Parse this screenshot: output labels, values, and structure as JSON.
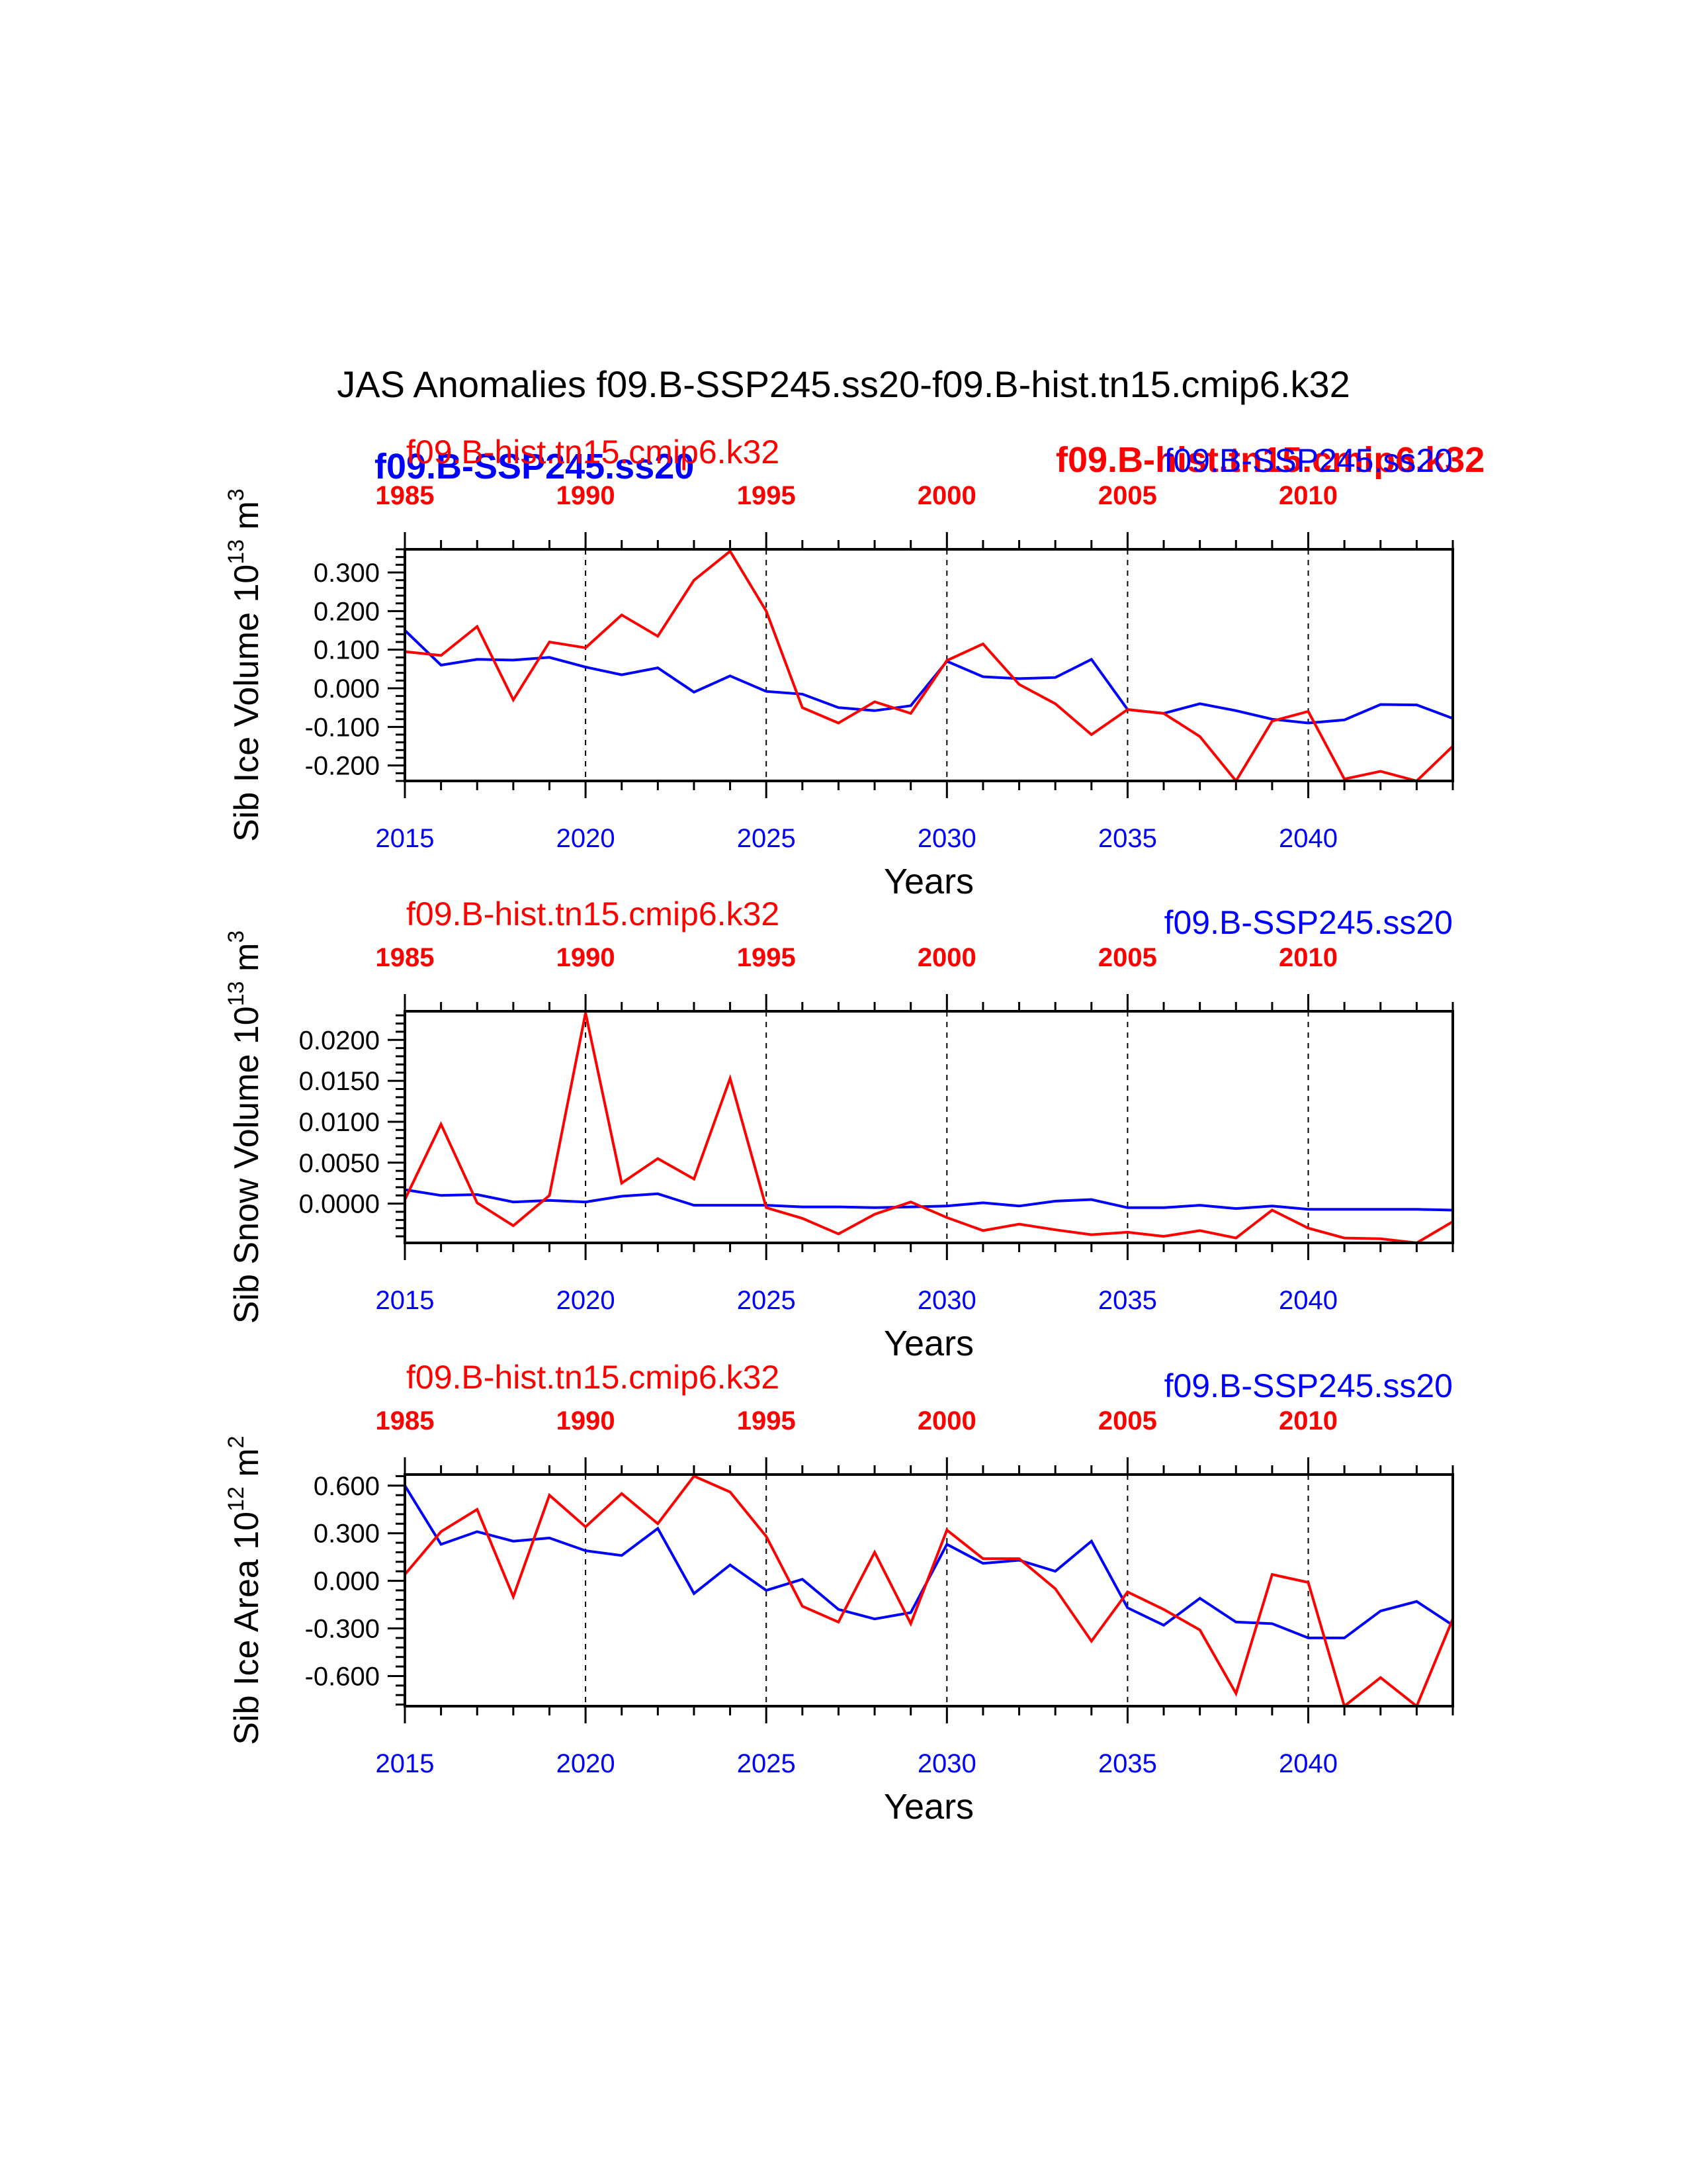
{
  "title": "JAS Anomalies f09.B-SSP245.ss20-f09.B-hist.tn15.cmip6.k32",
  "colors": {
    "ssp": "#0000ff",
    "hist": "#ff0000",
    "axis": "#000000"
  },
  "overlay_labels": {
    "ssp_bold": "f09.B-SSP245.ss20",
    "hist_bold": "f09.B-hist.tn15.cmip6.k32"
  },
  "chart_data": [
    {
      "type": "line",
      "ylabel": "Sib Ice Volume 10",
      "ylabel_exp": "13",
      "ylabel_unit": " m",
      "ylabel_unit_exp": "3",
      "xlabel": "Years",
      "ylim": [
        -0.24,
        0.36
      ],
      "yticks": [
        "0.300",
        "0.200",
        "0.100",
        "0.000",
        "-0.100",
        "-0.200"
      ],
      "ytick_values": [
        0.3,
        0.2,
        0.1,
        0.0,
        -0.1,
        -0.2
      ],
      "xlim": [
        2015,
        2044
      ],
      "top_series_label": "f09.B-hist.tn15.cmip6.k32",
      "top_right_label": "f09.B-SSP245.ss20",
      "top_axis_ticks": [
        "1985",
        "1990",
        "1995",
        "2000",
        "2005",
        "2010"
      ],
      "bottom_axis_ticks": [
        "2015",
        "2020",
        "2025",
        "2030",
        "2035",
        "2040"
      ],
      "series": [
        {
          "name": "f09.B-SSP245.ss20",
          "x_start": 2015,
          "values": [
            0.15,
            0.06,
            0.075,
            0.073,
            0.08,
            0.055,
            0.035,
            0.053,
            -0.01,
            0.032,
            -0.008,
            -0.015,
            -0.05,
            -0.058,
            -0.045,
            0.07,
            0.03,
            0.025,
            0.028,
            0.075,
            -0.055,
            -0.065,
            -0.04,
            -0.058,
            -0.08,
            -0.09,
            -0.082,
            -0.042,
            -0.043,
            -0.078
          ]
        },
        {
          "name": "f09.B-hist.tn15.cmip6.k32",
          "x_start": 1985,
          "values": [
            0.095,
            0.085,
            0.16,
            -0.03,
            0.12,
            0.105,
            0.19,
            0.135,
            0.28,
            0.355,
            0.2,
            -0.05,
            -0.09,
            -0.035,
            -0.065,
            0.072,
            0.115,
            0.01,
            -0.04,
            -0.12,
            -0.055,
            -0.065,
            -0.125,
            -0.24,
            -0.085,
            -0.06,
            -0.235,
            -0.215,
            -0.24,
            -0.15
          ]
        }
      ]
    },
    {
      "type": "line",
      "ylabel": "Sib Snow Volume 10",
      "ylabel_exp": "13",
      "ylabel_unit": " m",
      "ylabel_unit_exp": "3",
      "xlabel": "Years",
      "ylim": [
        -0.0048,
        0.0235
      ],
      "yticks": [
        "0.0200",
        "0.0150",
        "0.0100",
        "0.0050",
        "0.0000"
      ],
      "ytick_values": [
        0.02,
        0.015,
        0.01,
        0.005,
        0.0
      ],
      "xlim": [
        2015,
        2044
      ],
      "top_series_label": "f09.B-hist.tn15.cmip6.k32",
      "top_right_label": "f09.B-SSP245.ss20",
      "top_axis_ticks": [
        "1985",
        "1990",
        "1995",
        "2000",
        "2005",
        "2010"
      ],
      "bottom_axis_ticks": [
        "2015",
        "2020",
        "2025",
        "2030",
        "2035",
        "2040"
      ],
      "series": [
        {
          "name": "f09.B-SSP245.ss20",
          "x_start": 2015,
          "values": [
            0.0017,
            0.001,
            0.0011,
            0.0002,
            0.0004,
            0.0002,
            0.0009,
            0.0012,
            -0.0002,
            -0.0002,
            -0.0002,
            -0.0004,
            -0.0004,
            -0.0005,
            -0.0004,
            -0.0003,
            0.0001,
            -0.0003,
            0.0003,
            0.0005,
            -0.0005,
            -0.0005,
            -0.0002,
            -0.0006,
            -0.0003,
            -0.0007,
            -0.0007,
            -0.0007,
            -0.0007,
            -0.0008
          ]
        },
        {
          "name": "f09.B-hist.tn15.cmip6.k32",
          "x_start": 1985,
          "values": [
            0.0005,
            0.0097,
            0.0001,
            -0.0027,
            0.001,
            0.0233,
            0.0025,
            0.0055,
            0.003,
            0.0153,
            -0.0005,
            -0.0018,
            -0.0037,
            -0.0013,
            0.0002,
            -0.0017,
            -0.0033,
            -0.0025,
            -0.0032,
            -0.0038,
            -0.0035,
            -0.004,
            -0.0033,
            -0.0042,
            -0.0008,
            -0.003,
            -0.0042,
            -0.0043,
            -0.0048,
            -0.0022
          ]
        }
      ]
    },
    {
      "type": "line",
      "ylabel": "Sib Ice Area 10",
      "ylabel_exp": "12",
      "ylabel_unit": " m",
      "ylabel_unit_exp": "2",
      "xlabel": "Years",
      "ylim": [
        -0.79,
        0.67
      ],
      "yticks": [
        "0.600",
        "0.300",
        "0.000",
        "-0.300",
        "-0.600"
      ],
      "ytick_values": [
        0.6,
        0.3,
        0.0,
        -0.3,
        -0.6
      ],
      "xlim": [
        2015,
        2044
      ],
      "top_series_label": "f09.B-hist.tn15.cmip6.k32",
      "top_right_label": "f09.B-SSP245.ss20",
      "top_axis_ticks": [
        "1985",
        "1990",
        "1995",
        "2000",
        "2005",
        "2010"
      ],
      "bottom_axis_ticks": [
        "2015",
        "2020",
        "2025",
        "2030",
        "2035",
        "2040"
      ],
      "series": [
        {
          "name": "f09.B-SSP245.ss20",
          "x_start": 2015,
          "values": [
            0.6,
            0.23,
            0.31,
            0.25,
            0.27,
            0.19,
            0.16,
            0.33,
            -0.08,
            0.1,
            -0.06,
            0.01,
            -0.18,
            -0.24,
            -0.2,
            0.23,
            0.11,
            0.13,
            0.06,
            0.25,
            -0.17,
            -0.28,
            -0.11,
            -0.26,
            -0.27,
            -0.36,
            -0.36,
            -0.19,
            -0.13,
            -0.28
          ]
        },
        {
          "name": "f09.B-hist.tn15.cmip6.k32",
          "x_start": 1985,
          "values": [
            0.04,
            0.31,
            0.45,
            -0.1,
            0.54,
            0.34,
            0.55,
            0.36,
            0.66,
            0.56,
            0.28,
            -0.16,
            -0.26,
            0.18,
            -0.27,
            0.32,
            0.14,
            0.14,
            -0.05,
            -0.38,
            -0.07,
            -0.18,
            -0.31,
            -0.71,
            0.04,
            -0.01,
            -0.79,
            -0.61,
            -0.79,
            -0.24
          ]
        }
      ]
    }
  ]
}
